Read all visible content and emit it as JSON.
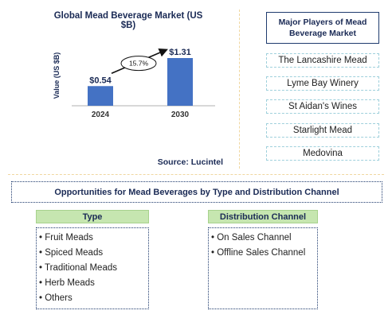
{
  "chart_data": {
    "type": "bar",
    "title": "Global Mead Beverage Market (US $B)",
    "ylabel": "Value (US $B)",
    "categories": [
      "2024",
      "2030"
    ],
    "values": [
      0.54,
      1.31
    ],
    "value_labels": [
      "$0.54",
      "$1.31"
    ],
    "cagr_label": "15.7%",
    "bar_color": "#4472c4"
  },
  "source": "Source: Lucintel",
  "players": {
    "title": "Major Players of Mead Beverage Market",
    "items": [
      "The Lancashire Mead",
      "Lyme Bay Winery",
      "St Aidan's Wines",
      "Starlight Mead",
      "Medovina"
    ]
  },
  "opportunities": {
    "title": "Opportunities for Mead Beverages by Type and Distribution Channel",
    "type": {
      "heading": "Type",
      "items": [
        "• Fruit Meads",
        "• Spiced Meads",
        "• Traditional Meads",
        "• Herb Meads",
        "• Others"
      ]
    },
    "channel": {
      "heading": "Distribution Channel",
      "items": [
        "• On Sales Channel",
        "• Offline Sales Channel"
      ]
    }
  }
}
